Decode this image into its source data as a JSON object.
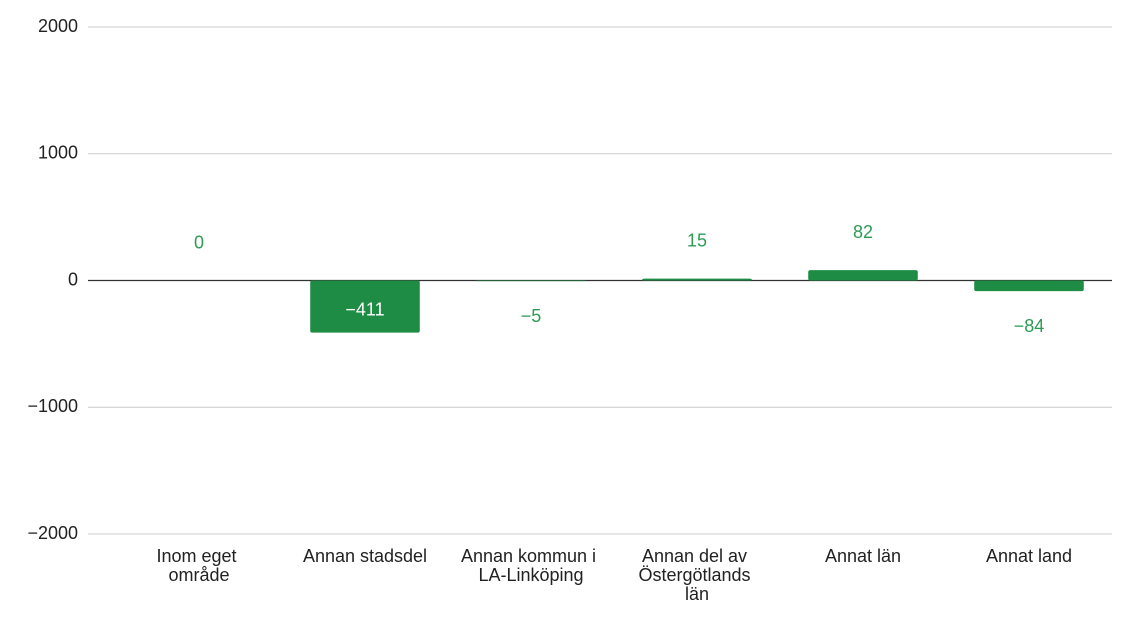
{
  "chart_data": {
    "type": "bar",
    "categories": [
      "Inom eget område",
      "Annan stadsdel",
      "Annan kommun i LA-Linköping",
      "Annan del av Östergötlands län",
      "Annat län",
      "Annat land"
    ],
    "values": [
      0,
      -411,
      -5,
      15,
      82,
      -84
    ],
    "value_labels": [
      "0",
      "−411",
      "−5",
      "15",
      "82",
      "−84"
    ],
    "color": "#1e8c45",
    "ylim": [
      -2000,
      2000
    ],
    "yticks": [
      {
        "value": -2000,
        "label": "−2000"
      },
      {
        "value": -1000,
        "label": "−1000"
      },
      0,
      1000,
      2000
    ],
    "grid": true
  }
}
